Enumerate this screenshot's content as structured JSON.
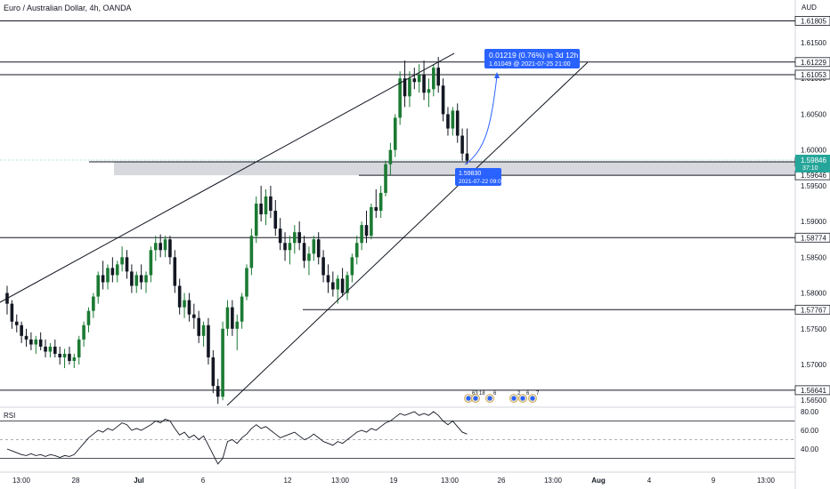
{
  "header": {
    "title": "Euro / Australian Dollar, 4h, OANDA",
    "currency": "AUD"
  },
  "colors": {
    "up": "#26a69a",
    "up_dark": "#1b7a33",
    "down": "#131722",
    "line": "#131722",
    "zone": "#c8cbd2",
    "badge": "#2962ff",
    "price_badge": "#26a69a"
  },
  "price_axis": {
    "ticks": [
      "1.61500",
      "1.61000",
      "1.60500",
      "1.60000",
      "1.59500",
      "1.59000",
      "1.58500",
      "1.58000",
      "1.57500",
      "1.57000",
      "1.56500"
    ],
    "levels": [
      {
        "value": 1.61805,
        "label": "1.61805"
      },
      {
        "value": 1.61229,
        "label": "1.61229"
      },
      {
        "value": 1.61053,
        "label": "1.61053"
      },
      {
        "value": 1.59834,
        "label": "1.59834"
      },
      {
        "value": 1.59646,
        "label": "1.59646"
      },
      {
        "value": 1.58774,
        "label": "1.58774"
      },
      {
        "value": 1.57767,
        "label": "1.57767"
      },
      {
        "value": 1.56641,
        "label": "1.56641"
      }
    ],
    "current": {
      "value": 1.59846,
      "label": "1.59846",
      "countdown": "37:10"
    }
  },
  "time_axis": {
    "ticks": [
      "13:00",
      "28",
      "Jul",
      "6",
      "12",
      "13:00",
      "19",
      "13:00",
      "26",
      "13:00",
      "Aug",
      "4",
      "9",
      "13:00"
    ]
  },
  "measure": {
    "title": "0.01219 (0.76%) in 3d 12h",
    "subtitle": "1.61049 @ 2021-07-25 21:00",
    "origin_value": "1.59830",
    "origin_time": "2021-07-22 09:00"
  },
  "events": [
    "63",
    "18",
    "6",
    "2",
    "6",
    "7"
  ],
  "rsi": {
    "label": "RSI",
    "ticks": [
      "80.00",
      "60.00",
      "40.00"
    ]
  },
  "chart_data": {
    "type": "candlestick",
    "title": "Euro / Australian Dollar, 4h, OANDA",
    "ylim": [
      1.5645,
      1.6205
    ],
    "date_range": [
      "2021-06-25",
      "2021-08-14"
    ],
    "horizontal_levels": [
      1.61805,
      1.61229,
      1.61053,
      1.59834,
      1.59646,
      1.58774,
      1.57767,
      1.56641
    ],
    "zone": [
      1.59646,
      1.59834
    ],
    "ohlc": [
      [
        1.58,
        1.581,
        1.577,
        1.5785
      ],
      [
        1.5785,
        1.579,
        1.575,
        1.576
      ],
      [
        1.576,
        1.577,
        1.5745,
        1.5755
      ],
      [
        1.5755,
        1.576,
        1.573,
        1.574
      ],
      [
        1.574,
        1.575,
        1.5725,
        1.5735
      ],
      [
        1.5735,
        1.5745,
        1.572,
        1.5728
      ],
      [
        1.5728,
        1.574,
        1.5715,
        1.5735
      ],
      [
        1.5735,
        1.5745,
        1.572,
        1.5725
      ],
      [
        1.5725,
        1.5735,
        1.571,
        1.5718
      ],
      [
        1.5718,
        1.573,
        1.571,
        1.5725
      ],
      [
        1.5725,
        1.5735,
        1.571,
        1.5715
      ],
      [
        1.5715,
        1.5725,
        1.57,
        1.571
      ],
      [
        1.571,
        1.5722,
        1.5695,
        1.5715
      ],
      [
        1.5715,
        1.5725,
        1.57,
        1.5705
      ],
      [
        1.5705,
        1.5715,
        1.5695,
        1.571
      ],
      [
        1.571,
        1.574,
        1.57,
        1.5735
      ],
      [
        1.5735,
        1.576,
        1.5725,
        1.5755
      ],
      [
        1.5755,
        1.578,
        1.5745,
        1.5775
      ],
      [
        1.5775,
        1.58,
        1.5765,
        1.5795
      ],
      [
        1.5795,
        1.583,
        1.5785,
        1.5825
      ],
      [
        1.5825,
        1.5845,
        1.5805,
        1.5815
      ],
      [
        1.5815,
        1.584,
        1.5805,
        1.5835
      ],
      [
        1.5835,
        1.585,
        1.5815,
        1.5825
      ],
      [
        1.5825,
        1.5845,
        1.5815,
        1.584
      ],
      [
        1.584,
        1.5865,
        1.583,
        1.585
      ],
      [
        1.585,
        1.586,
        1.582,
        1.583
      ],
      [
        1.583,
        1.584,
        1.58,
        1.581
      ],
      [
        1.581,
        1.583,
        1.58,
        1.5825
      ],
      [
        1.5825,
        1.584,
        1.5805,
        1.5815
      ],
      [
        1.5815,
        1.583,
        1.58,
        1.5825
      ],
      [
        1.5825,
        1.5865,
        1.5815,
        1.586
      ],
      [
        1.586,
        1.588,
        1.5845,
        1.587
      ],
      [
        1.587,
        1.5882,
        1.585,
        1.586
      ],
      [
        1.586,
        1.588,
        1.585,
        1.5875
      ],
      [
        1.5875,
        1.588,
        1.584,
        1.585
      ],
      [
        1.585,
        1.586,
        1.58,
        1.581
      ],
      [
        1.581,
        1.582,
        1.577,
        1.578
      ],
      [
        1.578,
        1.58,
        1.5765,
        1.579
      ],
      [
        1.579,
        1.58,
        1.576,
        1.577
      ],
      [
        1.577,
        1.5785,
        1.575,
        1.5765
      ],
      [
        1.5765,
        1.5775,
        1.573,
        1.574
      ],
      [
        1.574,
        1.576,
        1.5725,
        1.5755
      ],
      [
        1.5755,
        1.5765,
        1.57,
        1.571
      ],
      [
        1.571,
        1.572,
        1.566,
        1.567
      ],
      [
        1.567,
        1.568,
        1.5645,
        1.5655
      ],
      [
        1.5655,
        1.576,
        1.565,
        1.575
      ],
      [
        1.575,
        1.579,
        1.574,
        1.578
      ],
      [
        1.578,
        1.579,
        1.574,
        1.575
      ],
      [
        1.575,
        1.577,
        1.572,
        1.576
      ],
      [
        1.576,
        1.58,
        1.575,
        1.5795
      ],
      [
        1.5795,
        1.584,
        1.579,
        1.5835
      ],
      [
        1.5835,
        1.589,
        1.5825,
        1.588
      ],
      [
        1.588,
        1.5935,
        1.587,
        1.5925
      ],
      [
        1.5925,
        1.595,
        1.59,
        1.591
      ],
      [
        1.591,
        1.5945,
        1.5895,
        1.5935
      ],
      [
        1.5935,
        1.595,
        1.5905,
        1.5915
      ],
      [
        1.5915,
        1.593,
        1.588,
        1.589
      ],
      [
        1.589,
        1.5905,
        1.586,
        1.587
      ],
      [
        1.587,
        1.5885,
        1.5845,
        1.586
      ],
      [
        1.586,
        1.588,
        1.584,
        1.587
      ],
      [
        1.587,
        1.5895,
        1.5855,
        1.5885
      ],
      [
        1.5885,
        1.59,
        1.586,
        1.587
      ],
      [
        1.587,
        1.588,
        1.5835,
        1.5845
      ],
      [
        1.5845,
        1.5865,
        1.5825,
        1.5855
      ],
      [
        1.5855,
        1.588,
        1.5845,
        1.5875
      ],
      [
        1.5875,
        1.5885,
        1.584,
        1.585
      ],
      [
        1.585,
        1.586,
        1.5815,
        1.5825
      ],
      [
        1.5825,
        1.584,
        1.58,
        1.5815
      ],
      [
        1.5815,
        1.583,
        1.5795,
        1.5805
      ],
      [
        1.5805,
        1.5825,
        1.5785,
        1.582
      ],
      [
        1.582,
        1.5835,
        1.5795,
        1.58
      ],
      [
        1.58,
        1.583,
        1.579,
        1.5825
      ],
      [
        1.5825,
        1.5855,
        1.5815,
        1.585
      ],
      [
        1.585,
        1.588,
        1.584,
        1.587
      ],
      [
        1.587,
        1.59,
        1.586,
        1.5895
      ],
      [
        1.5895,
        1.5915,
        1.587,
        1.588
      ],
      [
        1.588,
        1.5925,
        1.5875,
        1.592
      ],
      [
        1.592,
        1.5945,
        1.5905,
        1.5915
      ],
      [
        1.5915,
        1.595,
        1.5905,
        1.594
      ],
      [
        1.594,
        1.5985,
        1.5935,
        1.598
      ],
      [
        1.598,
        1.601,
        1.5965,
        1.6
      ],
      [
        1.6,
        1.605,
        1.599,
        1.6045
      ],
      [
        1.6045,
        1.611,
        1.6035,
        1.61
      ],
      [
        1.61,
        1.6125,
        1.606,
        1.6075
      ],
      [
        1.6075,
        1.611,
        1.606,
        1.61
      ],
      [
        1.61,
        1.6115,
        1.6085,
        1.6095
      ],
      [
        1.6095,
        1.612,
        1.608,
        1.6105
      ],
      [
        1.6105,
        1.6125,
        1.607,
        1.608
      ],
      [
        1.608,
        1.61,
        1.606,
        1.6085
      ],
      [
        1.6085,
        1.612,
        1.6075,
        1.6115
      ],
      [
        1.6115,
        1.613,
        1.608,
        1.609
      ],
      [
        1.609,
        1.61,
        1.604,
        1.605
      ],
      [
        1.605,
        1.606,
        1.602,
        1.603
      ],
      [
        1.603,
        1.606,
        1.602,
        1.6055
      ],
      [
        1.6055,
        1.6065,
        1.601,
        1.602
      ],
      [
        1.602,
        1.603,
        1.5985,
        1.5995
      ],
      [
        1.5995,
        1.603,
        1.598,
        1.5985
      ]
    ],
    "rsi": {
      "ylim": [
        20,
        85
      ],
      "levels": [
        70,
        50,
        30
      ],
      "values": [
        40,
        38,
        36,
        34,
        33,
        35,
        33,
        34,
        32,
        34,
        33,
        31,
        33,
        32,
        34,
        40,
        46,
        52,
        56,
        60,
        58,
        62,
        60,
        64,
        68,
        66,
        60,
        62,
        60,
        63,
        66,
        70,
        68,
        72,
        70,
        62,
        55,
        58,
        52,
        55,
        50,
        54,
        44,
        34,
        24,
        30,
        48,
        50,
        46,
        52,
        56,
        62,
        66,
        62,
        64,
        60,
        56,
        52,
        54,
        56,
        58,
        54,
        50,
        52,
        56,
        52,
        48,
        46,
        44,
        48,
        46,
        50,
        54,
        58,
        60,
        58,
        62,
        60,
        64,
        68,
        70,
        74,
        78,
        76,
        78,
        80,
        76,
        78,
        76,
        80,
        76,
        70,
        66,
        70,
        64,
        58,
        56
      ]
    }
  }
}
